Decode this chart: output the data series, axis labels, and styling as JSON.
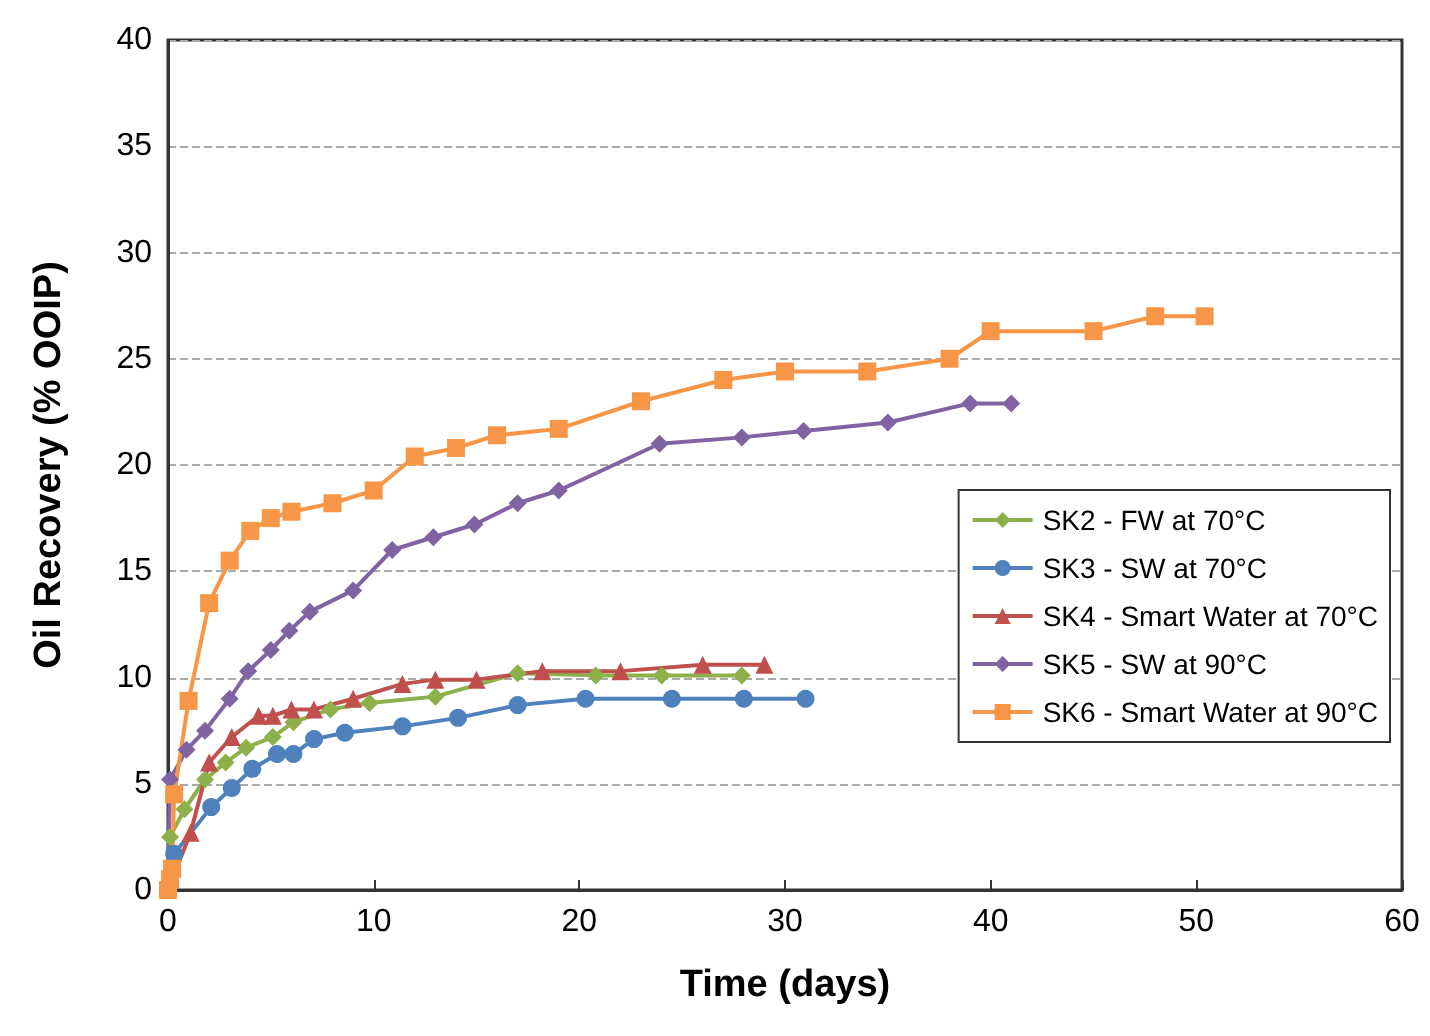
{
  "chart_data": {
    "type": "line",
    "xlabel": "Time (days)",
    "ylabel": "Oil Recovery (% OOIP)",
    "xlim": [
      0,
      60
    ],
    "xticks": [
      0,
      10,
      20,
      30,
      40,
      50,
      60
    ],
    "ylim": [
      0,
      40
    ],
    "yticks": [
      0,
      5,
      10,
      15,
      20,
      25,
      30,
      35,
      40
    ],
    "grid": "y",
    "legend": "right",
    "line_style": "solid",
    "series": [
      {
        "name": "SK2 - FW at 70°C",
        "color": "#8db04a",
        "marker": "diamond",
        "x": [
          0,
          0.1,
          0.8,
          1.8,
          2.8,
          3.8,
          5.1,
          6.1,
          7.9,
          9.8,
          13,
          17,
          20.8,
          24,
          27.9
        ],
        "values": [
          0,
          2.5,
          3.8,
          5.2,
          6.0,
          6.7,
          7.2,
          7.9,
          8.5,
          8.8,
          9.1,
          10.2,
          10.1,
          10.1,
          10.1
        ]
      },
      {
        "name": "SK3 - SW at 70°C",
        "color": "#4f81bd",
        "marker": "circle",
        "x": [
          0,
          0.3,
          2.1,
          3.1,
          4.1,
          5.3,
          6.1,
          7.1,
          8.6,
          11.4,
          14.1,
          17,
          20.3,
          24.5,
          28,
          31
        ],
        "values": [
          0,
          1.7,
          3.9,
          4.8,
          5.7,
          6.4,
          6.4,
          7.1,
          7.4,
          7.7,
          8.1,
          8.7,
          9.0,
          9.0,
          9.0,
          9.0
        ]
      },
      {
        "name": "SK4 - Smart Water at 70°C",
        "color": "#c0504d",
        "marker": "triangle",
        "x": [
          0,
          1.1,
          2,
          3.1,
          4.4,
          5.1,
          6,
          7.1,
          9,
          11.4,
          13,
          15,
          18.2,
          22,
          26,
          29
        ],
        "values": [
          0,
          2.7,
          6.0,
          7.2,
          8.2,
          8.2,
          8.5,
          8.5,
          9.0,
          9.7,
          9.9,
          9.9,
          10.3,
          10.3,
          10.6,
          10.6
        ]
      },
      {
        "name": "SK5 - SW at 90°C",
        "color": "#8064a2",
        "marker": "diamond",
        "x": [
          0,
          0.1,
          0.9,
          1.8,
          3,
          3.9,
          5,
          5.9,
          6.9,
          9,
          10.9,
          12.9,
          14.9,
          17,
          19,
          23.9,
          27.9,
          30.9,
          35,
          39,
          41
        ],
        "values": [
          0,
          5.2,
          6.6,
          7.5,
          9.0,
          10.3,
          11.3,
          12.2,
          13.1,
          14.1,
          16.0,
          16.6,
          17.2,
          18.2,
          18.8,
          21.0,
          21.3,
          21.6,
          22.0,
          22.9,
          22.9
        ]
      },
      {
        "name": "SK6 - Smart Water at 90°C",
        "color": "#f79646",
        "marker": "square",
        "x": [
          0,
          0.1,
          0.2,
          0.3,
          1,
          2,
          3,
          4,
          5,
          6,
          8,
          10,
          12,
          14,
          16,
          19,
          23,
          27,
          30,
          34,
          38,
          40,
          45,
          48,
          50.4
        ],
        "values": [
          0,
          0.5,
          1.0,
          4.5,
          8.9,
          13.5,
          15.5,
          16.9,
          17.5,
          17.8,
          18.2,
          18.8,
          20.4,
          20.8,
          21.4,
          21.7,
          23.0,
          24.0,
          24.4,
          24.4,
          25.0,
          26.3,
          26.3,
          27.0,
          27.0
        ]
      }
    ]
  }
}
